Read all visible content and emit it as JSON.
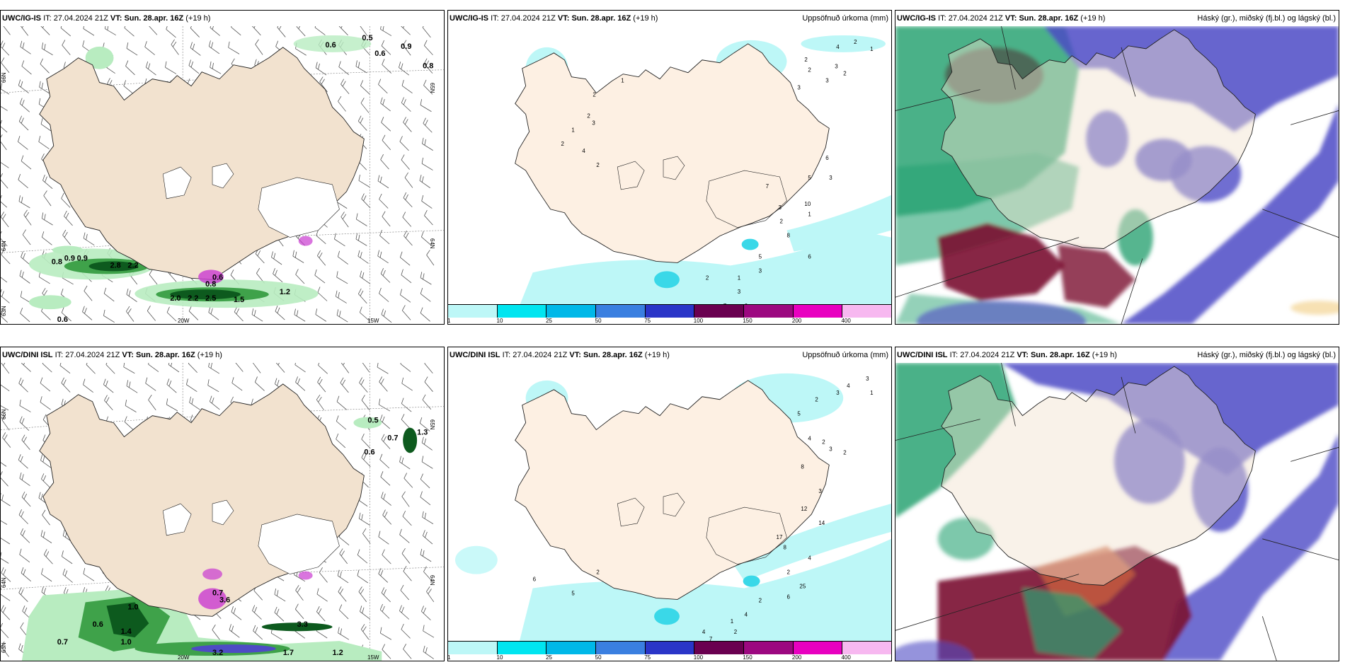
{
  "panels": [
    {
      "id": "p1",
      "model": "UWC/IG-IS",
      "it_label": "IT:",
      "it_value": "27.04.2024 21Z",
      "vt_label": "VT:",
      "vt_value": "Sun. 28.apr. 16Z",
      "lead": "(+19 h)",
      "right_title": "",
      "lat_labels": [
        "66N",
        "64N",
        "63N",
        "65N",
        "64N"
      ],
      "lon_labels": [
        "20W",
        "15W"
      ],
      "values": [
        "0.6",
        "0.5",
        "0.9",
        "0.6",
        "0.8",
        "0.8",
        "0.9",
        "0.9",
        "2.8",
        "2.2",
        "0.6",
        "0.8",
        "2.0",
        "2.2",
        "2.5",
        "1.2",
        "1.5",
        "0.6"
      ]
    },
    {
      "id": "p2",
      "model": "UWC/IG-IS",
      "it_label": "IT:",
      "it_value": "27.04.2024 21Z",
      "vt_label": "VT:",
      "vt_value": "Sun. 28.apr. 16Z",
      "lead": "(+19 h)",
      "right_title": "Uppsöfnuð úrkoma (mm)",
      "colorbar_labels": [
        "1",
        "10",
        "25",
        "50",
        "75",
        "100",
        "150",
        "200",
        "400"
      ],
      "colorbar_colors": [
        "#bdf7f7",
        "#00e5f0",
        "#00b8e8",
        "#3a7fe0",
        "#2a35c8",
        "#6a0050",
        "#9c0880",
        "#e800c0",
        "#f7b8f0"
      ]
    },
    {
      "id": "p3",
      "model": "UWC/IG-IS",
      "it_label": "IT:",
      "it_value": "27.04.2024 21Z",
      "vt_label": "VT:",
      "vt_value": "Sun. 28.apr. 16Z",
      "lead": "(+19 h)",
      "right_title": "Háský (gr.), miðský (fj.bl.) og lágský (bl.)"
    },
    {
      "id": "p4",
      "model": "UWC/DINI ISL",
      "it_label": "IT:",
      "it_value": "27.04.2024 21Z",
      "vt_label": "VT:",
      "vt_value": "Sun. 28.apr. 16Z",
      "lead": "(+19 h)",
      "right_title": "",
      "lat_labels": [
        "66N",
        "64N",
        "63N",
        "65N",
        "64N"
      ],
      "lon_labels": [
        "20W",
        "15W"
      ],
      "values": [
        "0.5",
        "0.7",
        "1.3",
        "0.6",
        "1.0",
        "0.6",
        "1.4",
        "0.7",
        "3.3",
        "3.2",
        "1.7",
        "1.2",
        "0.7",
        "1.0",
        "3.6"
      ]
    },
    {
      "id": "p5",
      "model": "UWC/DINI ISL",
      "it_label": "IT:",
      "it_value": "27.04.2024 21Z",
      "vt_label": "VT:",
      "vt_value": "Sun. 28.apr. 16Z",
      "lead": "(+19 h)",
      "right_title": "Uppsöfnuð úrkoma (mm)",
      "colorbar_labels": [
        "1",
        "10",
        "25",
        "50",
        "75",
        "100",
        "150",
        "200",
        "400"
      ],
      "colorbar_colors": [
        "#bdf7f7",
        "#00e5f0",
        "#00b8e8",
        "#3a7fe0",
        "#2a35c8",
        "#6a0050",
        "#9c0880",
        "#e800c0",
        "#f7b8f0"
      ]
    },
    {
      "id": "p6",
      "model": "UWC/DINI ISL",
      "it_label": "IT:",
      "it_value": "27.04.2024 21Z",
      "vt_label": "VT:",
      "vt_value": "Sun. 28.apr. 16Z",
      "lead": "(+19 h)",
      "right_title": "Háský (gr.), miðský (fj.bl.) og lágský (bl.)"
    }
  ],
  "precip_values_p2": [
    "2",
    "1",
    "4",
    "3",
    "2",
    "2",
    "2",
    "3",
    "3",
    "1",
    "2",
    "2",
    "3",
    "1",
    "2",
    "4",
    "2",
    "6",
    "3",
    "5",
    "7",
    "10",
    "3",
    "1",
    "2",
    "8",
    "5",
    "3",
    "1",
    "6",
    "7",
    "6",
    "3",
    "2"
  ],
  "precip_values_p5": [
    "3",
    "1",
    "4",
    "3",
    "2",
    "5",
    "4",
    "2",
    "3",
    "2",
    "8",
    "3",
    "12",
    "14",
    "17",
    "8",
    "4",
    "2",
    "25",
    "6",
    "2",
    "4",
    "1",
    "2",
    "7",
    "3",
    "4",
    "2",
    "5",
    "6"
  ],
  "colors": {
    "land": "#f2e2cf",
    "land_p2": "#fdf0e3",
    "coast": "#222222",
    "sea": "#ffffff",
    "green_dark": "#0d5a1e",
    "green_mid": "#3fa24a",
    "green_light": "#b8ecc0",
    "magenta": "#c93bd0",
    "cyan_light": "#bdf7f7",
    "cyan_mid": "#3ad8e8",
    "cloud_high": "#2aa373",
    "cloud_mid": "#4e4bc5",
    "cloud_low": "#7a1030"
  }
}
